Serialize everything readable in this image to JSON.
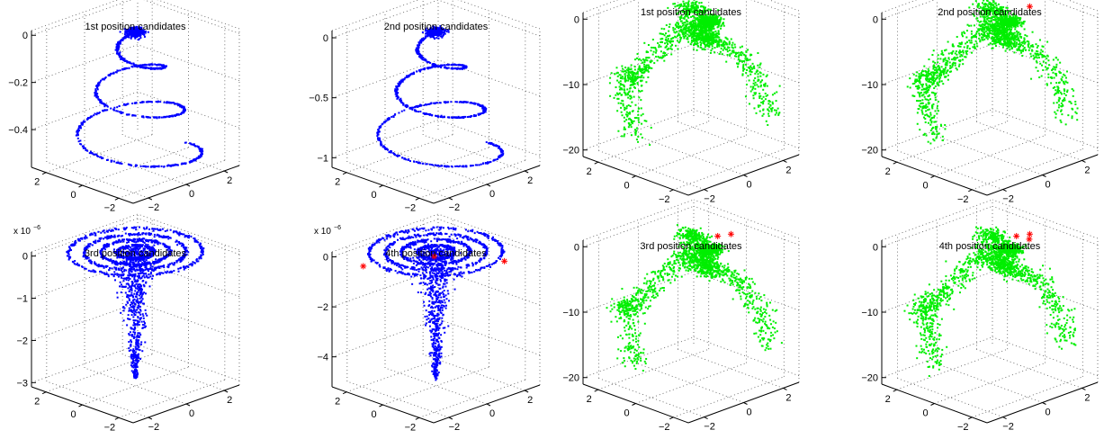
{
  "chart_data": [
    {
      "type": "scatter3d",
      "title": "1st position candidates",
      "marker_color": "#0000ff",
      "xlim": [
        -2.8,
        2.8
      ],
      "ylim": [
        -2.8,
        2.8
      ],
      "zlim": [
        -0.56,
        0.02
      ],
      "x_ticks": [
        -2,
        0,
        2
      ],
      "y_ticks": [
        -2,
        0,
        2
      ],
      "z_ticks": [
        -0.4,
        -0.2,
        0
      ],
      "x_tick_labels": [
        "−2",
        "0",
        "2"
      ],
      "y_tick_labels": [
        "−2",
        "0",
        "2"
      ],
      "z_tick_labels": [
        "−0.4",
        "−0.2",
        "0"
      ],
      "z_multiplier": "",
      "cloud": "spiral-down",
      "highlights": [],
      "highlight_color": "#ff0000"
    },
    {
      "type": "scatter3d",
      "title": "2nd position candidates",
      "marker_color": "#0000ff",
      "xlim": [
        -2.8,
        2.8
      ],
      "ylim": [
        -2.8,
        2.8
      ],
      "zlim": [
        -1.08,
        0.06
      ],
      "x_ticks": [
        -2,
        0,
        2
      ],
      "y_ticks": [
        -2,
        0,
        2
      ],
      "z_ticks": [
        -1,
        -0.5,
        0
      ],
      "x_tick_labels": [
        "−2",
        "0",
        "2"
      ],
      "y_tick_labels": [
        "−2",
        "0",
        "2"
      ],
      "z_tick_labels": [
        "−1",
        "−0.5",
        "0"
      ],
      "z_multiplier": "",
      "cloud": "spiral-down",
      "highlights": [],
      "highlight_color": "#ff0000"
    },
    {
      "type": "scatter3d",
      "title": "1st position candidates",
      "marker_color": "#00ee00",
      "xlim": [
        -2.8,
        2.8
      ],
      "ylim": [
        -2.8,
        2.8
      ],
      "zlim": [
        -21,
        1
      ],
      "x_ticks": [
        -2,
        0,
        2
      ],
      "y_ticks": [
        -2,
        0,
        2
      ],
      "z_ticks": [
        -20,
        -10,
        0
      ],
      "x_tick_labels": [
        "−2",
        "0",
        "2"
      ],
      "y_tick_labels": [
        "−2",
        "0",
        "2"
      ],
      "z_tick_labels": [
        "−20",
        "−10",
        "0"
      ],
      "z_multiplier": "",
      "cloud": "arch",
      "highlights": [],
      "highlight_color": "#ff0000"
    },
    {
      "type": "scatter3d",
      "title": "2nd position candidates",
      "marker_color": "#00ee00",
      "xlim": [
        -2.8,
        2.8
      ],
      "ylim": [
        -2.8,
        2.8
      ],
      "zlim": [
        -21,
        1
      ],
      "x_ticks": [
        -2,
        0,
        2
      ],
      "y_ticks": [
        -2,
        0,
        2
      ],
      "z_ticks": [
        -20,
        -10,
        0
      ],
      "x_tick_labels": [
        "−2",
        "0",
        "2"
      ],
      "y_tick_labels": [
        "−2",
        "0",
        "2"
      ],
      "z_tick_labels": [
        "−20",
        "−10",
        "0"
      ],
      "z_multiplier": "",
      "cloud": "arch",
      "highlights": [
        [
          2.5,
          0.5,
          -1.5
        ]
      ],
      "highlight_color": "#ff0000"
    },
    {
      "type": "scatter3d",
      "title": "3rd position candidates",
      "marker_color": "#0000ff",
      "xlim": [
        -2.8,
        2.8
      ],
      "ylim": [
        -2.8,
        2.8
      ],
      "zlim": [
        -3.1,
        0.1
      ],
      "x_ticks": [
        -2,
        0,
        2
      ],
      "y_ticks": [
        -2,
        0,
        2
      ],
      "z_ticks": [
        -3,
        -2,
        -1,
        0
      ],
      "x_tick_labels": [
        "−2",
        "0",
        "2"
      ],
      "y_tick_labels": [
        "−2",
        "0",
        "2"
      ],
      "z_tick_labels": [
        "−3",
        "−2",
        "−1",
        "0"
      ],
      "z_multiplier": "x 10",
      "z_multiplier_exp": "−6",
      "cloud": "rings-funnel",
      "highlights": [],
      "highlight_color": "#ff0000"
    },
    {
      "type": "scatter3d",
      "title": "4th position candidates",
      "marker_color": "#0000ff",
      "xlim": [
        -2.8,
        2.8
      ],
      "ylim": [
        -2.8,
        2.8
      ],
      "zlim": [
        -5.2,
        0.2
      ],
      "x_ticks": [
        -2,
        0,
        2
      ],
      "y_ticks": [
        -2,
        0,
        2
      ],
      "z_ticks": [
        -4,
        -2,
        0
      ],
      "x_tick_labels": [
        "−2",
        "0",
        "2"
      ],
      "y_tick_labels": [
        "−2",
        "0",
        "2"
      ],
      "z_tick_labels": [
        "−4",
        "−2",
        "0"
      ],
      "z_multiplier": "x 10",
      "z_multiplier_exp": "−6",
      "cloud": "rings-funnel",
      "highlights": [
        [
          -2.3,
          1.6,
          -0.2
        ],
        [
          0.2,
          0.3,
          -0.15
        ],
        [
          1.6,
          -2.1,
          -0.1
        ]
      ],
      "highlight_color": "#ff0000"
    },
    {
      "type": "scatter3d",
      "title": "3rd position candidates",
      "marker_color": "#00ee00",
      "xlim": [
        -2.8,
        2.8
      ],
      "ylim": [
        -2.8,
        2.8
      ],
      "zlim": [
        -21,
        1
      ],
      "x_ticks": [
        -2,
        0,
        2
      ],
      "y_ticks": [
        -2,
        0,
        2
      ],
      "z_ticks": [
        -20,
        -10,
        0
      ],
      "x_tick_labels": [
        "−2",
        "0",
        "2"
      ],
      "y_tick_labels": [
        "−2",
        "0",
        "2"
      ],
      "z_tick_labels": [
        "−20",
        "−10",
        "0"
      ],
      "z_multiplier": "",
      "cloud": "arch",
      "highlights": [
        [
          0.4,
          -1.0,
          2.5
        ],
        [
          2.5,
          0.5,
          -1.5
        ]
      ],
      "highlight_color": "#ff0000"
    },
    {
      "type": "scatter3d",
      "title": "4th position candidates",
      "marker_color": "#00ee00",
      "xlim": [
        -2.8,
        2.8
      ],
      "ylim": [
        -2.8,
        2.8
      ],
      "zlim": [
        -21,
        1
      ],
      "x_ticks": [
        -2,
        0,
        2
      ],
      "y_ticks": [
        -2,
        0,
        2
      ],
      "z_ticks": [
        -20,
        -10,
        0
      ],
      "x_tick_labels": [
        "−2",
        "0",
        "2"
      ],
      "y_tick_labels": [
        "−2",
        "0",
        "2"
      ],
      "z_tick_labels": [
        "−20",
        "−10",
        "0"
      ],
      "z_multiplier": "",
      "cloud": "arch",
      "highlights": [
        [
          0.4,
          -1.0,
          2.5
        ],
        [
          2.0,
          0.0,
          -1.2
        ],
        [
          2.5,
          0.5,
          -1.5
        ]
      ],
      "highlight_color": "#ff0000"
    }
  ]
}
